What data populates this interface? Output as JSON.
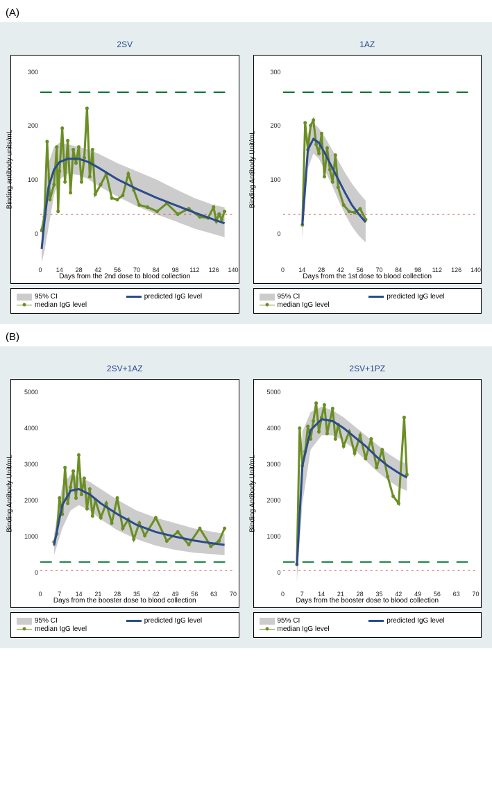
{
  "sections": {
    "A": {
      "label": "(A)"
    },
    "B": {
      "label": "(B)"
    }
  },
  "legend": {
    "ci": "95% CI",
    "pred": "predicted IgG level",
    "med": "median IgG level"
  },
  "colors": {
    "panel_bg": "#e6edef",
    "plot_bg": "#ffffff",
    "ci_fill": "#cccccc",
    "predicted_line": "#2b4b8c",
    "median_line": "#6b8e23",
    "marker_fill": "#6b8e23",
    "green_dash": "#0a7a3a",
    "red_dot": "#cc3333",
    "title_color": "#2b4b8c",
    "axis_color": "#000000"
  },
  "style": {
    "predicted_width": 3,
    "median_width": 1,
    "marker_radius": 2.5,
    "dash_width": 2.5,
    "dot_width": 1
  },
  "panels": {
    "A1": {
      "title": "2SV",
      "ylabel": "Binding antibody units/mL",
      "xlabel": "Days from the 2nd dose to blood collection",
      "xlim": [
        0,
        140
      ],
      "ylim": [
        -60,
        320
      ],
      "xticks": [
        0,
        14,
        28,
        42,
        56,
        70,
        84,
        98,
        112,
        126,
        140
      ],
      "yticks": [
        0,
        100,
        200,
        300
      ],
      "green_dash_y": 262,
      "red_dot_y": 35,
      "ci_upper": [
        [
          1,
          10
        ],
        [
          3,
          60
        ],
        [
          6,
          130
        ],
        [
          10,
          160
        ],
        [
          14,
          168
        ],
        [
          20,
          165
        ],
        [
          28,
          160
        ],
        [
          35,
          155
        ],
        [
          42,
          148
        ],
        [
          56,
          130
        ],
        [
          70,
          115
        ],
        [
          84,
          100
        ],
        [
          98,
          82
        ],
        [
          112,
          65
        ],
        [
          126,
          52
        ],
        [
          134,
          48
        ]
      ],
      "ci_lower": [
        [
          134,
          -8
        ],
        [
          126,
          -2
        ],
        [
          112,
          8
        ],
        [
          98,
          22
        ],
        [
          84,
          35
        ],
        [
          70,
          50
        ],
        [
          56,
          68
        ],
        [
          42,
          88
        ],
        [
          35,
          100
        ],
        [
          28,
          108
        ],
        [
          20,
          110
        ],
        [
          14,
          100
        ],
        [
          10,
          70
        ],
        [
          6,
          10
        ],
        [
          3,
          -35
        ],
        [
          1,
          -55
        ]
      ],
      "predicted": [
        [
          1,
          -30
        ],
        [
          3,
          20
        ],
        [
          6,
          85
        ],
        [
          10,
          118
        ],
        [
          14,
          132
        ],
        [
          20,
          138
        ],
        [
          28,
          138
        ],
        [
          35,
          132
        ],
        [
          42,
          122
        ],
        [
          56,
          100
        ],
        [
          70,
          82
        ],
        [
          84,
          66
        ],
        [
          98,
          52
        ],
        [
          112,
          38
        ],
        [
          126,
          25
        ],
        [
          134,
          18
        ]
      ],
      "median": [
        [
          1,
          5
        ],
        [
          3,
          30
        ],
        [
          5,
          170
        ],
        [
          7,
          62
        ],
        [
          10,
          90
        ],
        [
          12,
          160
        ],
        [
          13,
          40
        ],
        [
          14,
          115
        ],
        [
          16,
          195
        ],
        [
          18,
          95
        ],
        [
          20,
          172
        ],
        [
          22,
          75
        ],
        [
          24,
          155
        ],
        [
          26,
          130
        ],
        [
          28,
          160
        ],
        [
          30,
          95
        ],
        [
          32,
          140
        ],
        [
          34,
          232
        ],
        [
          36,
          105
        ],
        [
          38,
          155
        ],
        [
          40,
          72
        ],
        [
          44,
          90
        ],
        [
          48,
          110
        ],
        [
          52,
          65
        ],
        [
          56,
          62
        ],
        [
          60,
          70
        ],
        [
          64,
          110
        ],
        [
          68,
          80
        ],
        [
          72,
          52
        ],
        [
          78,
          48
        ],
        [
          85,
          40
        ],
        [
          92,
          55
        ],
        [
          100,
          35
        ],
        [
          108,
          45
        ],
        [
          116,
          30
        ],
        [
          122,
          28
        ],
        [
          126,
          48
        ],
        [
          128,
          22
        ],
        [
          130,
          35
        ],
        [
          132,
          25
        ],
        [
          134,
          40
        ]
      ]
    },
    "A2": {
      "title": "1AZ",
      "ylabel": "Binding Antibody Unit/mL",
      "xlabel": "Days from the 1st dose to blood collection",
      "xlim": [
        0,
        140
      ],
      "ylim": [
        -60,
        320
      ],
      "xticks": [
        0,
        14,
        28,
        42,
        56,
        70,
        84,
        98,
        112,
        126,
        140
      ],
      "yticks": [
        0,
        100,
        200,
        300
      ],
      "green_dash_y": 262,
      "red_dot_y": 35,
      "ci_upper": [
        [
          14,
          40
        ],
        [
          18,
          185
        ],
        [
          22,
          205
        ],
        [
          26,
          195
        ],
        [
          30,
          180
        ],
        [
          35,
          158
        ],
        [
          40,
          135
        ],
        [
          45,
          112
        ],
        [
          50,
          92
        ],
        [
          55,
          75
        ],
        [
          60,
          60
        ]
      ],
      "ci_lower": [
        [
          60,
          -18
        ],
        [
          55,
          -5
        ],
        [
          50,
          12
        ],
        [
          45,
          35
        ],
        [
          40,
          62
        ],
        [
          35,
          92
        ],
        [
          30,
          118
        ],
        [
          26,
          138
        ],
        [
          22,
          148
        ],
        [
          18,
          120
        ],
        [
          14,
          -10
        ]
      ],
      "predicted": [
        [
          14,
          15
        ],
        [
          18,
          155
        ],
        [
          22,
          175
        ],
        [
          26,
          168
        ],
        [
          30,
          150
        ],
        [
          35,
          125
        ],
        [
          40,
          100
        ],
        [
          45,
          75
        ],
        [
          50,
          52
        ],
        [
          55,
          35
        ],
        [
          60,
          20
        ]
      ],
      "median": [
        [
          14,
          15
        ],
        [
          16,
          205
        ],
        [
          18,
          155
        ],
        [
          20,
          200
        ],
        [
          22,
          210
        ],
        [
          24,
          165
        ],
        [
          26,
          148
        ],
        [
          28,
          185
        ],
        [
          30,
          105
        ],
        [
          32,
          158
        ],
        [
          34,
          118
        ],
        [
          36,
          95
        ],
        [
          38,
          145
        ],
        [
          40,
          85
        ],
        [
          44,
          52
        ],
        [
          48,
          40
        ],
        [
          52,
          38
        ],
        [
          56,
          45
        ],
        [
          60,
          25
        ]
      ]
    },
    "B1": {
      "title": "2SV+1AZ",
      "ylabel": "Binding Antibody Unit/mL",
      "xlabel": "Days from the booster dose to blood collection",
      "xlim": [
        0,
        70
      ],
      "ylim": [
        -500,
        5200
      ],
      "xticks": [
        0,
        7,
        14,
        21,
        28,
        35,
        42,
        49,
        56,
        63,
        70
      ],
      "yticks": [
        0,
        1000,
        2000,
        3000,
        4000,
        5000
      ],
      "green_dash_y": 262,
      "red_dot_y": 35,
      "ci_upper": [
        [
          5,
          1000
        ],
        [
          8,
          2400
        ],
        [
          11,
          2700
        ],
        [
          14,
          2650
        ],
        [
          18,
          2500
        ],
        [
          22,
          2300
        ],
        [
          28,
          2000
        ],
        [
          35,
          1700
        ],
        [
          42,
          1500
        ],
        [
          49,
          1350
        ],
        [
          56,
          1200
        ],
        [
          63,
          1100
        ],
        [
          67,
          1050
        ]
      ],
      "ci_lower": [
        [
          67,
          450
        ],
        [
          63,
          480
        ],
        [
          56,
          520
        ],
        [
          49,
          600
        ],
        [
          42,
          720
        ],
        [
          35,
          900
        ],
        [
          28,
          1150
        ],
        [
          22,
          1450
        ],
        [
          18,
          1700
        ],
        [
          14,
          1850
        ],
        [
          11,
          1700
        ],
        [
          8,
          1200
        ],
        [
          5,
          450
        ]
      ],
      "predicted": [
        [
          5,
          720
        ],
        [
          8,
          1850
        ],
        [
          11,
          2250
        ],
        [
          14,
          2300
        ],
        [
          18,
          2150
        ],
        [
          22,
          1900
        ],
        [
          28,
          1600
        ],
        [
          35,
          1300
        ],
        [
          42,
          1100
        ],
        [
          49,
          970
        ],
        [
          56,
          860
        ],
        [
          63,
          780
        ],
        [
          67,
          740
        ]
      ],
      "median": [
        [
          5,
          820
        ],
        [
          6,
          1050
        ],
        [
          7,
          2050
        ],
        [
          8,
          1600
        ],
        [
          9,
          2900
        ],
        [
          10,
          1900
        ],
        [
          11,
          2350
        ],
        [
          12,
          2800
        ],
        [
          13,
          2050
        ],
        [
          14,
          3250
        ],
        [
          15,
          2150
        ],
        [
          16,
          2600
        ],
        [
          17,
          1750
        ],
        [
          18,
          2300
        ],
        [
          19,
          1550
        ],
        [
          20,
          2000
        ],
        [
          22,
          1500
        ],
        [
          24,
          1900
        ],
        [
          26,
          1350
        ],
        [
          28,
          2050
        ],
        [
          30,
          1200
        ],
        [
          32,
          1450
        ],
        [
          34,
          900
        ],
        [
          36,
          1350
        ],
        [
          38,
          1000
        ],
        [
          42,
          1500
        ],
        [
          46,
          850
        ],
        [
          50,
          1100
        ],
        [
          54,
          750
        ],
        [
          58,
          1200
        ],
        [
          62,
          700
        ],
        [
          65,
          850
        ],
        [
          67,
          1200
        ]
      ]
    },
    "B2": {
      "title": "2SV+1PZ",
      "ylabel": "Binding Antibody Unit/mL",
      "xlabel": "Days from the booster dose to blood collection",
      "xlim": [
        0,
        70
      ],
      "ylim": [
        -500,
        5200
      ],
      "xticks": [
        0,
        7,
        14,
        21,
        28,
        35,
        42,
        49,
        56,
        63,
        70
      ],
      "yticks": [
        0,
        1000,
        2000,
        3000,
        4000,
        5000
      ],
      "green_dash_y": 262,
      "red_dot_y": 35,
      "ci_upper": [
        [
          5,
          600
        ],
        [
          7,
          3900
        ],
        [
          10,
          4450
        ],
        [
          14,
          4600
        ],
        [
          18,
          4500
        ],
        [
          22,
          4300
        ],
        [
          26,
          4050
        ],
        [
          30,
          3800
        ],
        [
          34,
          3550
        ],
        [
          38,
          3300
        ],
        [
          42,
          3100
        ],
        [
          45,
          3000
        ]
      ],
      "ci_lower": [
        [
          45,
          2250
        ],
        [
          42,
          2350
        ],
        [
          38,
          2550
        ],
        [
          34,
          2800
        ],
        [
          30,
          3100
        ],
        [
          26,
          3400
        ],
        [
          22,
          3650
        ],
        [
          18,
          3800
        ],
        [
          14,
          3800
        ],
        [
          10,
          3400
        ],
        [
          7,
          1900
        ],
        [
          5,
          -300
        ]
      ],
      "predicted": [
        [
          5,
          150
        ],
        [
          7,
          2950
        ],
        [
          10,
          3950
        ],
        [
          14,
          4250
        ],
        [
          18,
          4200
        ],
        [
          22,
          4000
        ],
        [
          26,
          3750
        ],
        [
          30,
          3500
        ],
        [
          34,
          3200
        ],
        [
          38,
          2950
        ],
        [
          42,
          2750
        ],
        [
          45,
          2620
        ]
      ],
      "median": [
        [
          5,
          200
        ],
        [
          6,
          4000
        ],
        [
          7,
          2950
        ],
        [
          8,
          3350
        ],
        [
          9,
          4050
        ],
        [
          10,
          3700
        ],
        [
          11,
          4200
        ],
        [
          12,
          4700
        ],
        [
          13,
          3900
        ],
        [
          14,
          4300
        ],
        [
          15,
          4650
        ],
        [
          16,
          3850
        ],
        [
          17,
          4200
        ],
        [
          18,
          4550
        ],
        [
          19,
          3700
        ],
        [
          20,
          4100
        ],
        [
          22,
          3500
        ],
        [
          24,
          3900
        ],
        [
          26,
          3300
        ],
        [
          28,
          3800
        ],
        [
          30,
          3150
        ],
        [
          32,
          3700
        ],
        [
          34,
          2900
        ],
        [
          36,
          3400
        ],
        [
          38,
          2650
        ],
        [
          40,
          2100
        ],
        [
          42,
          1900
        ],
        [
          44,
          4300
        ],
        [
          45,
          2700
        ]
      ]
    }
  }
}
